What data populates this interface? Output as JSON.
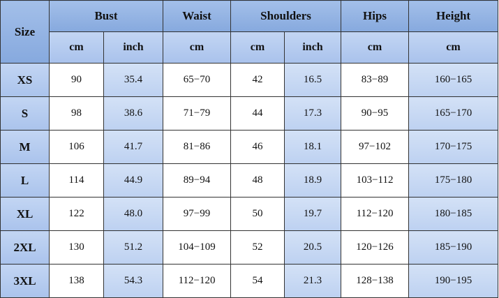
{
  "table": {
    "header": [
      "Size",
      "Bust",
      "Waist",
      "Shoulders",
      "Hips",
      "Height"
    ],
    "units": [
      "cm",
      "inch",
      "cm",
      "cm",
      "inch",
      "cm",
      "cm"
    ],
    "rows": [
      [
        "XS",
        "90",
        "35.4",
        "65−70",
        "42",
        "16.5",
        "83−89",
        "160−165"
      ],
      [
        "S",
        "98",
        "38.6",
        "71−79",
        "44",
        "17.3",
        "90−95",
        "165−170"
      ],
      [
        "M",
        "106",
        "41.7",
        "81−86",
        "46",
        "18.1",
        "97−102",
        "170−175"
      ],
      [
        "L",
        "114",
        "44.9",
        "89−94",
        "48",
        "18.9",
        "103−112",
        "175−180"
      ],
      [
        "XL",
        "122",
        "48.0",
        "97−99",
        "50",
        "19.7",
        "112−120",
        "180−185"
      ],
      [
        "2XL",
        "130",
        "51.2",
        "104−109",
        "52",
        "20.5",
        "120−126",
        "185−190"
      ],
      [
        "3XL",
        "138",
        "54.3",
        "112−120",
        "54",
        "21.3",
        "128−138",
        "190−195"
      ]
    ]
  }
}
